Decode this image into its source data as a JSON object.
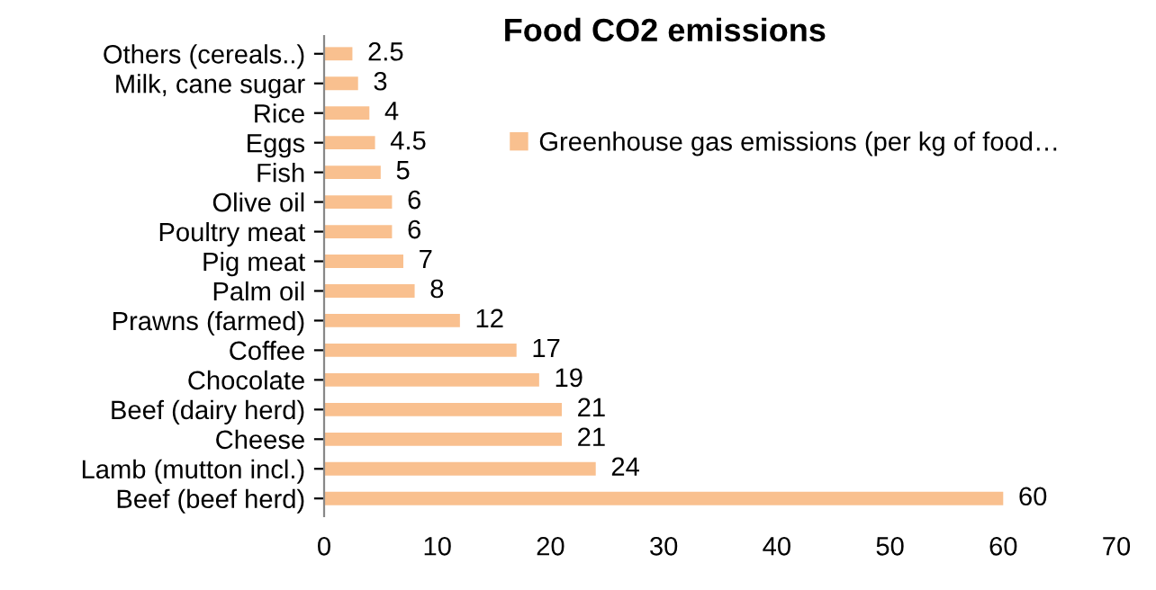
{
  "chart_data": {
    "type": "bar",
    "orientation": "horizontal",
    "title": "Food CO2 emissions",
    "categories": [
      "Others (cereals..)",
      "Milk, cane sugar",
      "Rice",
      "Eggs",
      "Fish",
      "Olive oil",
      "Poultry meat",
      "Pig meat",
      "Palm oil",
      "Prawns (farmed)",
      "Coffee",
      "Chocolate",
      "Beef (dairy herd)",
      "Cheese",
      "Lamb (mutton incl.)",
      "Beef (beef herd)"
    ],
    "series": [
      {
        "name": "Greenhouse gas emissions (per kg of food…",
        "color": "#f9c08f",
        "values": [
          2.5,
          3,
          4,
          4.5,
          5,
          6,
          6,
          7,
          8,
          12,
          17,
          19,
          21,
          21,
          24,
          60
        ]
      }
    ],
    "xlim": [
      0,
      70
    ],
    "xticks": [
      0,
      10,
      20,
      30,
      40,
      50,
      60,
      70
    ],
    "data_labels": true,
    "grid": false,
    "legend": "top right"
  }
}
